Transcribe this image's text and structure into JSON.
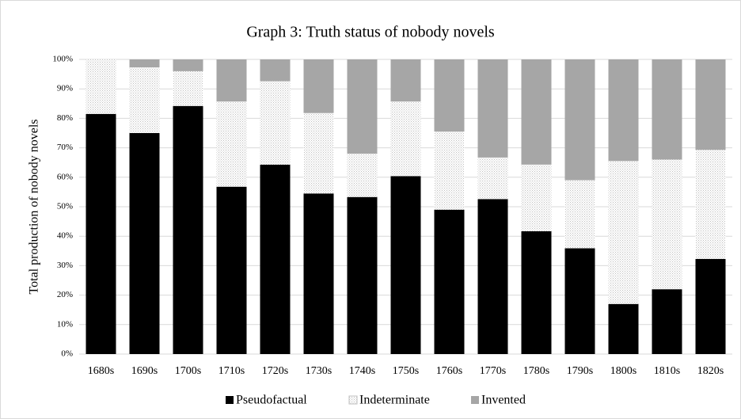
{
  "chart_data": {
    "type": "stacked_bar",
    "title": "Graph 3: Truth status of nobody novels",
    "y_label": "Total production of nobody novels",
    "categories": [
      "1680s",
      "1690s",
      "1700s",
      "1710s",
      "1720s",
      "1730s",
      "1740s",
      "1750s",
      "1760s",
      "1770s",
      "1780s",
      "1790s",
      "1800s",
      "1810s",
      "1820s"
    ],
    "series": [
      {
        "name": "Pseudofactual",
        "color": "#000000",
        "values": [
          81.5,
          75,
          84.2,
          56.8,
          64.3,
          54.5,
          53.3,
          60.4,
          49,
          52.6,
          41.7,
          35.9,
          17,
          22,
          32.3
        ]
      },
      {
        "name": "Indeterminate",
        "color": "#bfbfbf",
        "values": [
          18.5,
          22.3,
          11.8,
          28.9,
          28.3,
          27.3,
          14.7,
          25.3,
          26.5,
          14.1,
          22.6,
          23.1,
          48.5,
          44,
          37
        ]
      },
      {
        "name": "Invented",
        "color": "#a6a6a6",
        "values": [
          0,
          2.7,
          4,
          14.3,
          7.4,
          18.2,
          32,
          14.3,
          24.5,
          33.3,
          35.7,
          41,
          34.5,
          34,
          30.7
        ]
      }
    ],
    "ylim": [
      0,
      100
    ],
    "yticks": [
      {
        "value": 0,
        "label": "0%"
      },
      {
        "value": 10,
        "label": "10%"
      },
      {
        "value": 20,
        "label": "20%"
      },
      {
        "value": 30,
        "label": "30%"
      },
      {
        "value": 40,
        "label": "40%"
      },
      {
        "value": 50,
        "label": "50%"
      },
      {
        "value": 60,
        "label": "60%"
      },
      {
        "value": 70,
        "label": "70%"
      },
      {
        "value": 80,
        "label": "80%"
      },
      {
        "value": 90,
        "label": "90%"
      },
      {
        "value": 100,
        "label": "100%"
      }
    ],
    "grid": true,
    "legend": "bottom"
  }
}
